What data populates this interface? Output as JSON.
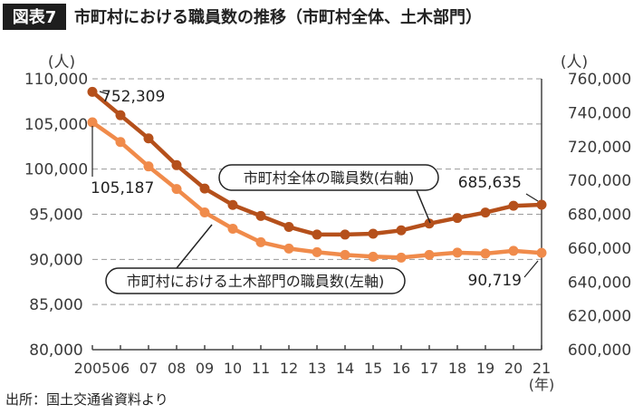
{
  "figure": {
    "badge": "図表7",
    "title": "市町村における職員数の推移（市町村全体、土木部門）",
    "source": "出所：国土交通省資料より"
  },
  "chart_data": {
    "type": "line",
    "x": [
      "2005",
      "06",
      "07",
      "08",
      "09",
      "10",
      "11",
      "12",
      "13",
      "14",
      "15",
      "16",
      "17",
      "18",
      "19",
      "20",
      "21"
    ],
    "x_unit": "(年)",
    "left_axis": {
      "unit": "(人)",
      "ylim": [
        80000,
        110000
      ],
      "ticks": [
        "80,000",
        "85,000",
        "90,000",
        "95,000",
        "100,000",
        "105,000",
        "110,000"
      ]
    },
    "right_axis": {
      "unit": "(人)",
      "ylim": [
        600000,
        760000
      ],
      "ticks": [
        "600,000",
        "620,000",
        "640,000",
        "660,000",
        "680,000",
        "700,000",
        "720,000",
        "740,000",
        "760,000"
      ]
    },
    "grid": true,
    "series": [
      {
        "name": "市町村全体の職員数(右軸)",
        "axis": "right",
        "color": "#b5501b",
        "values": [
          752309,
          738500,
          724800,
          709000,
          695200,
          685500,
          679000,
          672500,
          668000,
          668000,
          668500,
          670500,
          674500,
          677800,
          681000,
          685000,
          685635
        ],
        "labels": [
          {
            "index": 0,
            "text": "752,309"
          },
          {
            "index": 16,
            "text": "685,635"
          }
        ]
      },
      {
        "name": "市町村における土木部門の職員数(左軸)",
        "axis": "left",
        "color": "#f08b4b",
        "values": [
          105187,
          103000,
          100300,
          97800,
          95200,
          93400,
          91900,
          91200,
          90800,
          90500,
          90300,
          90200,
          90500,
          90750,
          90650,
          90950,
          90719
        ],
        "labels": [
          {
            "index": 0,
            "text": "105,187"
          },
          {
            "index": 16,
            "text": "90,719"
          }
        ]
      }
    ]
  }
}
